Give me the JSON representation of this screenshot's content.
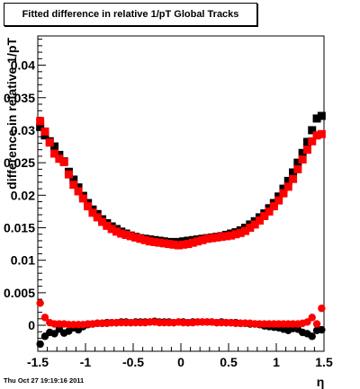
{
  "chart_data": {
    "type": "scatter",
    "title": "Fitted difference in relative 1/pT  Global Tracks",
    "xlabel": "η",
    "ylabel": "difference in relative 1/pT",
    "xlim": [
      -1.5,
      1.5
    ],
    "ylim": [
      -0.004,
      0.0445
    ],
    "x_ticks": [
      -1.5,
      -1,
      -0.5,
      0,
      0.5,
      1,
      1.5
    ],
    "x_tick_labels": [
      "-1.5",
      "-1",
      "-0.5",
      "0",
      "0.5",
      "1",
      "1.5"
    ],
    "y_ticks": [
      0,
      0.005,
      0.01,
      0.015,
      0.02,
      0.025,
      0.03,
      0.035,
      0.04
    ],
    "y_tick_labels": [
      "0",
      "0.005",
      "0.01",
      "0.015",
      "0.02",
      "0.025",
      "0.03",
      "0.035",
      "0.04"
    ],
    "grid": false,
    "series": [
      {
        "color": "#000000",
        "marker": "square",
        "x": [
          -1.475,
          -1.425,
          -1.375,
          -1.325,
          -1.275,
          -1.225,
          -1.175,
          -1.125,
          -1.075,
          -1.025,
          -0.975,
          -0.925,
          -0.875,
          -0.825,
          -0.775,
          -0.725,
          -0.675,
          -0.625,
          -0.575,
          -0.525,
          -0.475,
          -0.425,
          -0.375,
          -0.325,
          -0.275,
          -0.225,
          -0.175,
          -0.125,
          -0.075,
          -0.025,
          0.025,
          0.075,
          0.125,
          0.175,
          0.225,
          0.275,
          0.325,
          0.375,
          0.425,
          0.475,
          0.525,
          0.575,
          0.625,
          0.675,
          0.725,
          0.775,
          0.825,
          0.875,
          0.925,
          0.975,
          1.025,
          1.075,
          1.125,
          1.175,
          1.225,
          1.275,
          1.325,
          1.375,
          1.425,
          1.475
        ],
        "y": [
          0.0305,
          0.0292,
          0.0283,
          0.0275,
          0.0262,
          0.0252,
          0.0236,
          0.0224,
          0.0212,
          0.0199,
          0.0188,
          0.0178,
          0.0171,
          0.0163,
          0.0157,
          0.0152,
          0.0148,
          0.0144,
          0.0141,
          0.0138,
          0.0136,
          0.0134,
          0.0133,
          0.0132,
          0.0131,
          0.013,
          0.0129,
          0.0128,
          0.0128,
          0.0128,
          0.0129,
          0.013,
          0.0131,
          0.0132,
          0.0133,
          0.0134,
          0.0135,
          0.0136,
          0.0137,
          0.0139,
          0.0141,
          0.0143,
          0.0146,
          0.015,
          0.0155,
          0.016,
          0.0166,
          0.0172,
          0.018,
          0.0188,
          0.0198,
          0.021,
          0.0222,
          0.0235,
          0.025,
          0.0265,
          0.0282,
          0.03,
          0.0318,
          0.0322
        ]
      },
      {
        "color": "#ff0000",
        "marker": "square",
        "x": [
          -1.475,
          -1.425,
          -1.375,
          -1.325,
          -1.275,
          -1.225,
          -1.175,
          -1.125,
          -1.075,
          -1.025,
          -0.975,
          -0.925,
          -0.875,
          -0.825,
          -0.775,
          -0.725,
          -0.675,
          -0.625,
          -0.575,
          -0.525,
          -0.475,
          -0.425,
          -0.375,
          -0.325,
          -0.275,
          -0.225,
          -0.175,
          -0.125,
          -0.075,
          -0.025,
          0.025,
          0.075,
          0.125,
          0.175,
          0.225,
          0.275,
          0.325,
          0.375,
          0.425,
          0.475,
          0.525,
          0.575,
          0.625,
          0.675,
          0.725,
          0.775,
          0.825,
          0.875,
          0.925,
          0.975,
          1.025,
          1.075,
          1.125,
          1.175,
          1.225,
          1.275,
          1.325,
          1.375,
          1.425,
          1.475
        ],
        "y": [
          0.0314,
          0.0298,
          0.0281,
          0.0264,
          0.0256,
          0.0251,
          0.0232,
          0.0216,
          0.0206,
          0.0195,
          0.0183,
          0.0173,
          0.0166,
          0.0159,
          0.0153,
          0.0148,
          0.0144,
          0.0141,
          0.0139,
          0.0137,
          0.0135,
          0.0133,
          0.0131,
          0.0129,
          0.0128,
          0.0127,
          0.0126,
          0.0125,
          0.0124,
          0.0123,
          0.0124,
          0.0125,
          0.0127,
          0.0129,
          0.0131,
          0.0133,
          0.0134,
          0.0135,
          0.0136,
          0.0137,
          0.0138,
          0.014,
          0.0142,
          0.0145,
          0.015,
          0.0155,
          0.0161,
          0.0168,
          0.0175,
          0.0183,
          0.0192,
          0.0203,
          0.0213,
          0.0225,
          0.024,
          0.0255,
          0.027,
          0.0283,
          0.0292,
          0.0294
        ]
      },
      {
        "color": "#000000",
        "marker": "circle",
        "x": [
          -1.475,
          -1.425,
          -1.375,
          -1.325,
          -1.275,
          -1.225,
          -1.175,
          -1.125,
          -1.075,
          -1.025,
          -0.975,
          -0.925,
          -0.875,
          -0.825,
          -0.775,
          -0.725,
          -0.675,
          -0.625,
          -0.575,
          -0.525,
          -0.475,
          -0.425,
          -0.375,
          -0.325,
          -0.275,
          -0.225,
          -0.175,
          -0.125,
          -0.075,
          -0.025,
          0.025,
          0.075,
          0.125,
          0.175,
          0.225,
          0.275,
          0.325,
          0.375,
          0.425,
          0.475,
          0.525,
          0.575,
          0.625,
          0.675,
          0.725,
          0.775,
          0.825,
          0.875,
          0.925,
          0.975,
          1.025,
          1.075,
          1.125,
          1.175,
          1.225,
          1.275,
          1.325,
          1.375,
          1.425,
          1.475
        ],
        "y": [
          -0.0029,
          -0.0017,
          -0.0011,
          -0.0013,
          -0.0006,
          -0.0012,
          -0.0009,
          -0.0004,
          -0.0007,
          -0.0002,
          0.0001,
          0.0002,
          0.0003,
          0.0003,
          0.0004,
          0.0004,
          0.0004,
          0.0005,
          0.0005,
          0.0004,
          0.0005,
          0.0005,
          0.0005,
          0.0005,
          0.0006,
          0.0005,
          0.0005,
          0.0005,
          0.0004,
          0.0005,
          0.0005,
          0.0004,
          0.0005,
          0.0005,
          0.0005,
          0.0005,
          0.0005,
          0.0004,
          0.0005,
          0.0004,
          0.0004,
          0.0004,
          0.0003,
          0.0003,
          0.0002,
          0.0002,
          0.0001,
          -0.0001,
          -0.0002,
          -0.0003,
          -0.0004,
          -0.0006,
          -0.0008,
          -0.0005,
          -0.0006,
          -0.0011,
          -0.0013,
          -0.0017,
          -0.0008,
          -0.0007
        ]
      },
      {
        "color": "#ff0000",
        "marker": "circle",
        "x": [
          -1.475,
          -1.425,
          -1.375,
          -1.325,
          -1.275,
          -1.225,
          -1.175,
          -1.125,
          -1.075,
          -1.025,
          -0.975,
          -0.925,
          -0.875,
          -0.825,
          -0.775,
          -0.725,
          -0.675,
          -0.625,
          -0.575,
          -0.525,
          -0.475,
          -0.425,
          -0.375,
          -0.325,
          -0.275,
          -0.225,
          -0.175,
          -0.125,
          -0.075,
          -0.025,
          0.025,
          0.075,
          0.125,
          0.175,
          0.225,
          0.275,
          0.325,
          0.375,
          0.425,
          0.475,
          0.525,
          0.575,
          0.625,
          0.675,
          0.725,
          0.775,
          0.825,
          0.875,
          0.925,
          0.975,
          1.025,
          1.075,
          1.125,
          1.175,
          1.225,
          1.275,
          1.325,
          1.375,
          1.425,
          1.475
        ],
        "y": [
          0.0034,
          0.0012,
          0.0004,
          0.0002,
          0.0002,
          0.0002,
          0.0001,
          0.0001,
          0.0001,
          0.0001,
          0.0002,
          0.0002,
          0.0003,
          0.0003,
          0.0003,
          0.0004,
          0.0004,
          0.0004,
          0.0004,
          0.0004,
          0.0004,
          0.0004,
          0.0004,
          0.0005,
          0.0005,
          0.0004,
          0.0004,
          0.0004,
          0.0004,
          0.0005,
          0.0004,
          0.0004,
          0.0004,
          0.0005,
          0.0005,
          0.0005,
          0.0005,
          0.0004,
          0.0004,
          0.0004,
          0.0004,
          0.0003,
          0.0003,
          0.0003,
          0.0003,
          0.0002,
          0.0002,
          0.0002,
          0.0002,
          0.0002,
          0.0002,
          0.0002,
          0.0002,
          0.0002,
          0.0002,
          0.0003,
          0.0005,
          0.0012,
          0.0002,
          0.0026
        ]
      }
    ]
  },
  "footer": {
    "timestamp": "Thu Oct 27 19:19:16 2011"
  }
}
